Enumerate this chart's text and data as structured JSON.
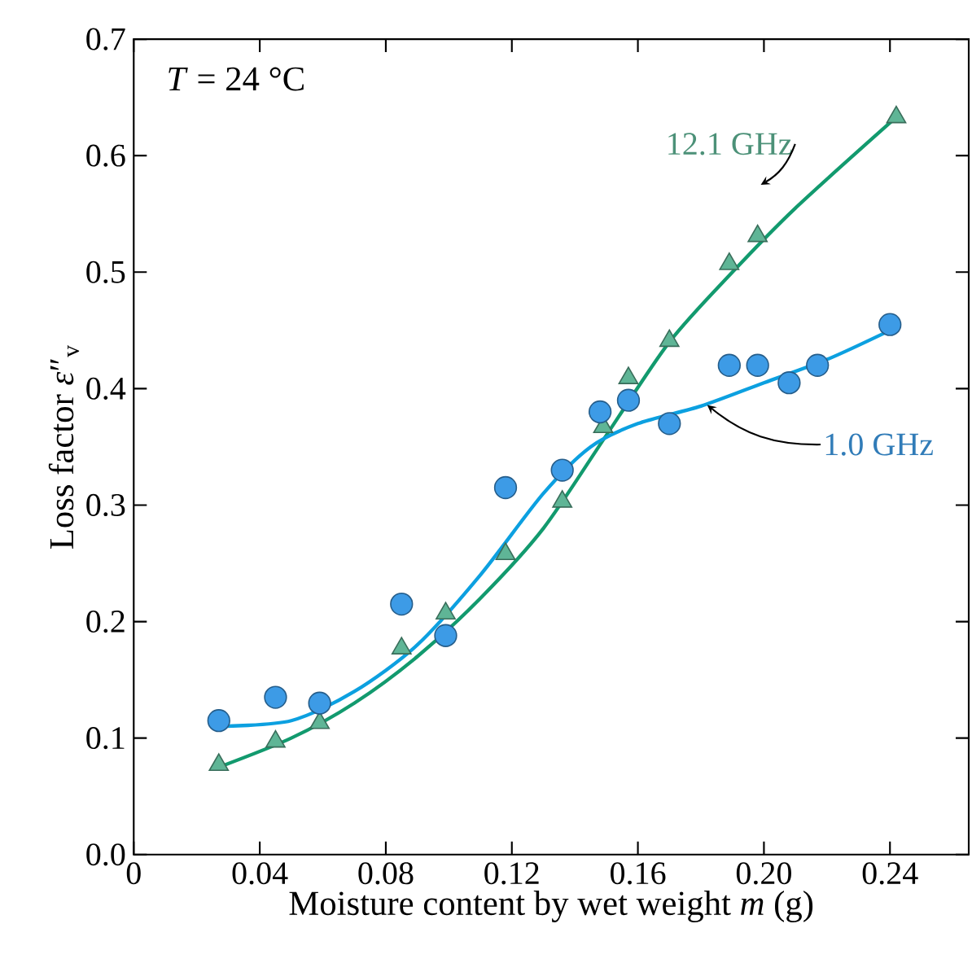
{
  "chart_data": {
    "type": "scatter",
    "xlabel": "Moisture content by wet weight *m* (g)",
    "ylabel": "Loss factor *ε*″$_{v}$",
    "annotations": [
      "*T* = 24 °C"
    ],
    "xlim": [
      0,
      0.265
    ],
    "ylim": [
      0,
      0.7
    ],
    "xticks": [
      0,
      0.04,
      0.08,
      0.12,
      0.16,
      {
        "value": 0.2,
        "label": "0.20"
      },
      0.24
    ],
    "yticks": [
      {
        "value": 0,
        "label": "0.0"
      },
      0.1,
      0.2,
      0.3,
      0.4,
      0.5,
      0.6,
      0.7
    ],
    "grid": false,
    "series": [
      {
        "name": "12.1 GHz",
        "marker": "triangle",
        "color": "#5fb596",
        "x": [
          0.027,
          0.045,
          0.059,
          0.085,
          0.099,
          0.118,
          0.136,
          0.149,
          0.157,
          0.17,
          0.189,
          0.198,
          0.242
        ],
        "values": [
          0.077,
          0.097,
          0.113,
          0.177,
          0.207,
          0.258,
          0.303,
          0.367,
          0.409,
          0.441,
          0.507,
          0.531,
          0.633
        ]
      },
      {
        "name": "1.0 GHz",
        "marker": "circle",
        "color": "#3d9be6",
        "x": [
          0.027,
          0.045,
          0.059,
          0.085,
          0.099,
          0.118,
          0.136,
          0.148,
          0.157,
          0.17,
          0.189,
          0.198,
          0.208,
          0.217,
          0.24
        ],
        "values": [
          0.115,
          0.135,
          0.13,
          0.215,
          0.188,
          0.315,
          0.33,
          0.38,
          0.39,
          0.37,
          0.42,
          0.42,
          0.405,
          0.42,
          0.455
        ]
      },
      {
        "type": "line",
        "marker": "none",
        "color": "#129a6e",
        "x": [
          0.027,
          0.05,
          0.07,
          0.09,
          0.11,
          0.13,
          0.15,
          0.17,
          0.19,
          0.21,
          0.242
        ],
        "values": [
          0.075,
          0.1,
          0.13,
          0.17,
          0.22,
          0.28,
          0.36,
          0.44,
          0.5,
          0.555,
          0.633
        ]
      },
      {
        "type": "line",
        "marker": "none",
        "color": "#0ca0e0",
        "x": [
          0.027,
          0.05,
          0.07,
          0.09,
          0.11,
          0.13,
          0.145,
          0.16,
          0.18,
          0.2,
          0.22,
          0.24
        ],
        "values": [
          0.11,
          0.115,
          0.14,
          0.18,
          0.24,
          0.31,
          0.35,
          0.37,
          0.385,
          0.405,
          0.425,
          0.45
        ]
      }
    ]
  }
}
